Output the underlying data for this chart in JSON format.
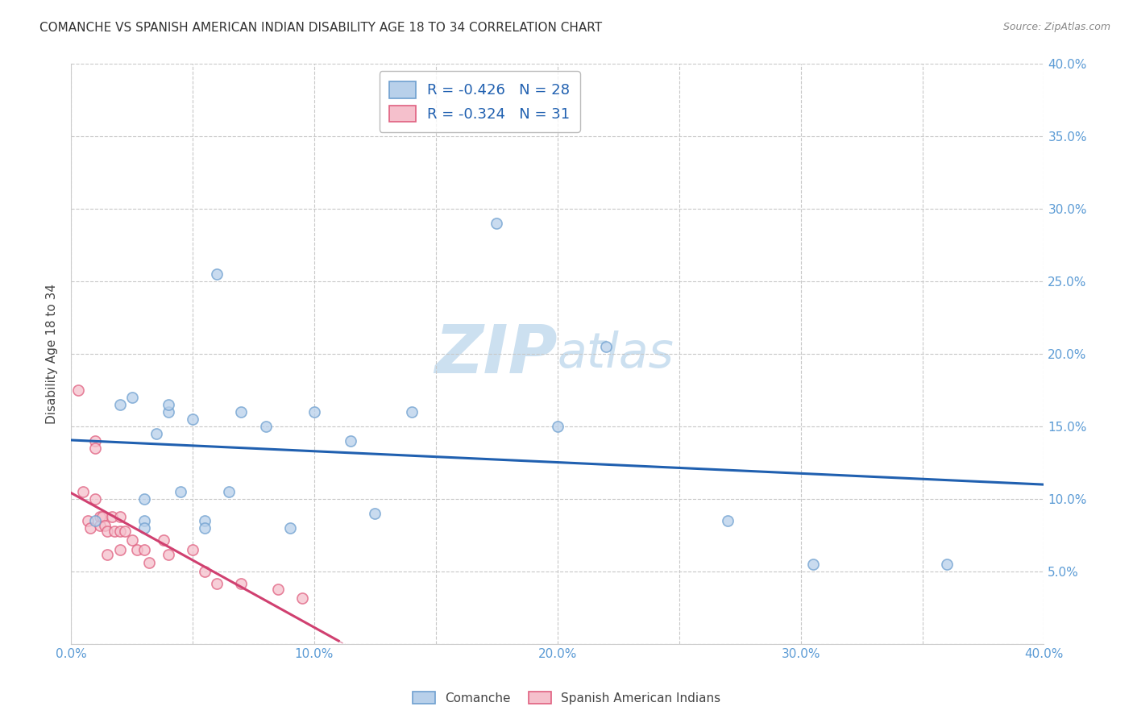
{
  "title": "COMANCHE VS SPANISH AMERICAN INDIAN DISABILITY AGE 18 TO 34 CORRELATION CHART",
  "source": "Source: ZipAtlas.com",
  "ylabel": "Disability Age 18 to 34",
  "xlim": [
    0.0,
    0.4
  ],
  "ylim": [
    0.0,
    0.4
  ],
  "xticks": [
    0.0,
    0.05,
    0.1,
    0.15,
    0.2,
    0.25,
    0.3,
    0.35,
    0.4
  ],
  "yticks": [
    0.0,
    0.05,
    0.1,
    0.15,
    0.2,
    0.25,
    0.3,
    0.35,
    0.4
  ],
  "grid_color": "#c8c8c8",
  "background_color": "#ffffff",
  "comanche_r": -0.426,
  "comanche_n": 28,
  "spanish_r": -0.324,
  "spanish_n": 31,
  "comanche_color": "#b8d0ea",
  "comanche_edge_color": "#6fa0d0",
  "comanche_line_color": "#2060b0",
  "spanish_color": "#f5c0cc",
  "spanish_edge_color": "#e06080",
  "spanish_line_color": "#d04070",
  "comanche_x": [
    0.01,
    0.02,
    0.025,
    0.03,
    0.03,
    0.03,
    0.035,
    0.04,
    0.04,
    0.045,
    0.05,
    0.055,
    0.055,
    0.06,
    0.065,
    0.07,
    0.08,
    0.09,
    0.1,
    0.115,
    0.125,
    0.14,
    0.175,
    0.2,
    0.22,
    0.27,
    0.305,
    0.36
  ],
  "comanche_y": [
    0.085,
    0.165,
    0.17,
    0.1,
    0.085,
    0.08,
    0.145,
    0.16,
    0.165,
    0.105,
    0.155,
    0.085,
    0.08,
    0.255,
    0.105,
    0.16,
    0.15,
    0.08,
    0.16,
    0.14,
    0.09,
    0.16,
    0.29,
    0.15,
    0.205,
    0.085,
    0.055,
    0.055
  ],
  "spanish_x": [
    0.003,
    0.005,
    0.007,
    0.008,
    0.01,
    0.01,
    0.01,
    0.012,
    0.012,
    0.013,
    0.014,
    0.015,
    0.015,
    0.017,
    0.018,
    0.02,
    0.02,
    0.02,
    0.022,
    0.025,
    0.027,
    0.03,
    0.032,
    0.038,
    0.04,
    0.05,
    0.055,
    0.06,
    0.07,
    0.085,
    0.095
  ],
  "spanish_y": [
    0.175,
    0.105,
    0.085,
    0.08,
    0.14,
    0.135,
    0.1,
    0.088,
    0.082,
    0.088,
    0.082,
    0.078,
    0.062,
    0.088,
    0.078,
    0.088,
    0.078,
    0.065,
    0.078,
    0.072,
    0.065,
    0.065,
    0.056,
    0.072,
    0.062,
    0.065,
    0.05,
    0.042,
    0.042,
    0.038,
    0.032
  ],
  "watermark_zip": "ZIP",
  "watermark_atlas": "atlas",
  "watermark_color": "#cce0f0",
  "watermark_fontsize": 60,
  "legend_comanche": "Comanche",
  "legend_spanish": "Spanish American Indians",
  "marker_size": 90,
  "marker_edge_width": 1.2,
  "marker_alpha": 0.75,
  "spanish_line_xmax": 0.11
}
